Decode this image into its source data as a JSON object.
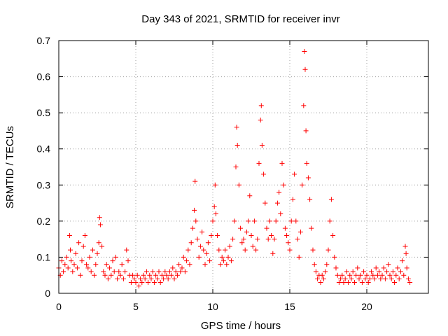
{
  "chart_data": {
    "type": "scatter",
    "title": "Day 343 of 2021, SRMTID for receiver invr",
    "xlabel": "GPS time / hours",
    "ylabel": "SRMTID / TECUs",
    "xlim": [
      0,
      24
    ],
    "ylim": [
      0,
      0.7
    ],
    "x_ticks": [
      0,
      5,
      10,
      15,
      20
    ],
    "x_tick_labels": [
      "0",
      "5",
      "10",
      "15",
      "20"
    ],
    "y_ticks": [
      0,
      0.1,
      0.2,
      0.3,
      0.4,
      0.5,
      0.6,
      0.7
    ],
    "y_tick_labels": [
      "0",
      "0.1",
      "0.2",
      "0.3",
      "0.4",
      "0.5",
      "0.6",
      "0.7"
    ],
    "grid": true,
    "marker": "plus",
    "color": "#ff0000",
    "series": [
      {
        "name": "SRMTID",
        "points": [
          [
            0.0,
            0.07
          ],
          [
            0.1,
            0.05
          ],
          [
            0.2,
            0.09
          ],
          [
            0.3,
            0.06
          ],
          [
            0.4,
            0.08
          ],
          [
            0.5,
            0.1
          ],
          [
            0.6,
            0.07
          ],
          [
            0.7,
            0.16
          ],
          [
            0.75,
            0.12
          ],
          [
            0.8,
            0.09
          ],
          [
            0.9,
            0.06
          ],
          [
            1.0,
            0.08
          ],
          [
            1.1,
            0.11
          ],
          [
            1.2,
            0.07
          ],
          [
            1.3,
            0.14
          ],
          [
            1.4,
            0.05
          ],
          [
            1.5,
            0.09
          ],
          [
            1.6,
            0.13
          ],
          [
            1.7,
            0.16
          ],
          [
            1.8,
            0.08
          ],
          [
            1.9,
            0.07
          ],
          [
            2.0,
            0.1
          ],
          [
            2.1,
            0.06
          ],
          [
            2.2,
            0.12
          ],
          [
            2.3,
            0.05
          ],
          [
            2.4,
            0.08
          ],
          [
            2.5,
            0.11
          ],
          [
            2.6,
            0.14
          ],
          [
            2.65,
            0.21
          ],
          [
            2.7,
            0.19
          ],
          [
            2.8,
            0.13
          ],
          [
            2.9,
            0.06
          ],
          [
            3.0,
            0.05
          ],
          [
            3.1,
            0.08
          ],
          [
            3.2,
            0.04
          ],
          [
            3.3,
            0.07
          ],
          [
            3.4,
            0.05
          ],
          [
            3.5,
            0.09
          ],
          [
            3.6,
            0.06
          ],
          [
            3.7,
            0.1
          ],
          [
            3.8,
            0.04
          ],
          [
            3.9,
            0.06
          ],
          [
            4.0,
            0.05
          ],
          [
            4.1,
            0.08
          ],
          [
            4.2,
            0.04
          ],
          [
            4.3,
            0.06
          ],
          [
            4.4,
            0.12
          ],
          [
            4.5,
            0.09
          ],
          [
            4.6,
            0.05
          ],
          [
            4.7,
            0.03
          ],
          [
            4.8,
            0.05
          ],
          [
            4.9,
            0.04
          ],
          [
            5.0,
            0.03
          ],
          [
            5.1,
            0.05
          ],
          [
            5.2,
            0.02
          ],
          [
            5.3,
            0.04
          ],
          [
            5.4,
            0.03
          ],
          [
            5.5,
            0.05
          ],
          [
            5.6,
            0.04
          ],
          [
            5.7,
            0.06
          ],
          [
            5.8,
            0.03
          ],
          [
            5.9,
            0.05
          ],
          [
            6.0,
            0.04
          ],
          [
            6.1,
            0.06
          ],
          [
            6.2,
            0.03
          ],
          [
            6.3,
            0.05
          ],
          [
            6.4,
            0.04
          ],
          [
            6.5,
            0.06
          ],
          [
            6.6,
            0.03
          ],
          [
            6.7,
            0.05
          ],
          [
            6.8,
            0.04
          ],
          [
            6.9,
            0.06
          ],
          [
            7.0,
            0.05
          ],
          [
            7.1,
            0.04
          ],
          [
            7.2,
            0.06
          ],
          [
            7.3,
            0.05
          ],
          [
            7.4,
            0.07
          ],
          [
            7.5,
            0.04
          ],
          [
            7.6,
            0.06
          ],
          [
            7.7,
            0.05
          ],
          [
            7.8,
            0.08
          ],
          [
            7.9,
            0.06
          ],
          [
            8.0,
            0.07
          ],
          [
            8.1,
            0.1
          ],
          [
            8.2,
            0.06
          ],
          [
            8.3,
            0.09
          ],
          [
            8.4,
            0.12
          ],
          [
            8.5,
            0.08
          ],
          [
            8.6,
            0.14
          ],
          [
            8.7,
            0.18
          ],
          [
            8.8,
            0.23
          ],
          [
            8.85,
            0.31
          ],
          [
            8.9,
            0.2
          ],
          [
            9.0,
            0.15
          ],
          [
            9.1,
            0.1
          ],
          [
            9.2,
            0.13
          ],
          [
            9.3,
            0.17
          ],
          [
            9.4,
            0.12
          ],
          [
            9.5,
            0.08
          ],
          [
            9.6,
            0.11
          ],
          [
            9.7,
            0.14
          ],
          [
            9.8,
            0.09
          ],
          [
            9.9,
            0.16
          ],
          [
            10.0,
            0.2
          ],
          [
            10.1,
            0.24
          ],
          [
            10.15,
            0.3
          ],
          [
            10.2,
            0.22
          ],
          [
            10.3,
            0.16
          ],
          [
            10.4,
            0.12
          ],
          [
            10.5,
            0.08
          ],
          [
            10.6,
            0.1
          ],
          [
            10.7,
            0.09
          ],
          [
            10.8,
            0.12
          ],
          [
            10.9,
            0.08
          ],
          [
            11.0,
            0.1
          ],
          [
            11.1,
            0.13
          ],
          [
            11.2,
            0.09
          ],
          [
            11.3,
            0.15
          ],
          [
            11.4,
            0.2
          ],
          [
            11.5,
            0.35
          ],
          [
            11.55,
            0.46
          ],
          [
            11.6,
            0.41
          ],
          [
            11.7,
            0.3
          ],
          [
            11.8,
            0.18
          ],
          [
            11.9,
            0.14
          ],
          [
            12.0,
            0.15
          ],
          [
            12.1,
            0.12
          ],
          [
            12.2,
            0.17
          ],
          [
            12.3,
            0.2
          ],
          [
            12.4,
            0.27
          ],
          [
            12.5,
            0.16
          ],
          [
            12.6,
            0.13
          ],
          [
            12.7,
            0.2
          ],
          [
            12.8,
            0.12
          ],
          [
            12.9,
            0.15
          ],
          [
            13.0,
            0.36
          ],
          [
            13.1,
            0.48
          ],
          [
            13.15,
            0.52
          ],
          [
            13.2,
            0.41
          ],
          [
            13.3,
            0.33
          ],
          [
            13.4,
            0.25
          ],
          [
            13.5,
            0.18
          ],
          [
            13.6,
            0.15
          ],
          [
            13.7,
            0.2
          ],
          [
            13.8,
            0.16
          ],
          [
            13.9,
            0.11
          ],
          [
            14.0,
            0.15
          ],
          [
            14.1,
            0.2
          ],
          [
            14.2,
            0.25
          ],
          [
            14.3,
            0.28
          ],
          [
            14.4,
            0.22
          ],
          [
            14.5,
            0.36
          ],
          [
            14.6,
            0.3
          ],
          [
            14.7,
            0.18
          ],
          [
            14.8,
            0.16
          ],
          [
            14.9,
            0.14
          ],
          [
            15.0,
            0.12
          ],
          [
            15.1,
            0.2
          ],
          [
            15.2,
            0.26
          ],
          [
            15.3,
            0.33
          ],
          [
            15.4,
            0.2
          ],
          [
            15.5,
            0.15
          ],
          [
            15.6,
            0.1
          ],
          [
            15.7,
            0.17
          ],
          [
            15.8,
            0.3
          ],
          [
            15.9,
            0.52
          ],
          [
            15.95,
            0.67
          ],
          [
            16.0,
            0.62
          ],
          [
            16.05,
            0.45
          ],
          [
            16.1,
            0.36
          ],
          [
            16.2,
            0.32
          ],
          [
            16.3,
            0.26
          ],
          [
            16.4,
            0.18
          ],
          [
            16.5,
            0.12
          ],
          [
            16.6,
            0.08
          ],
          [
            16.7,
            0.06
          ],
          [
            16.8,
            0.04
          ],
          [
            16.9,
            0.05
          ],
          [
            17.0,
            0.03
          ],
          [
            17.1,
            0.05
          ],
          [
            17.2,
            0.04
          ],
          [
            17.3,
            0.06
          ],
          [
            17.4,
            0.08
          ],
          [
            17.5,
            0.12
          ],
          [
            17.6,
            0.2
          ],
          [
            17.7,
            0.26
          ],
          [
            17.8,
            0.16
          ],
          [
            17.9,
            0.1
          ],
          [
            18.0,
            0.07
          ],
          [
            18.1,
            0.05
          ],
          [
            18.2,
            0.03
          ],
          [
            18.3,
            0.04
          ],
          [
            18.4,
            0.05
          ],
          [
            18.5,
            0.03
          ],
          [
            18.6,
            0.04
          ],
          [
            18.7,
            0.06
          ],
          [
            18.8,
            0.03
          ],
          [
            18.9,
            0.05
          ],
          [
            19.0,
            0.04
          ],
          [
            19.1,
            0.06
          ],
          [
            19.2,
            0.03
          ],
          [
            19.3,
            0.05
          ],
          [
            19.4,
            0.07
          ],
          [
            19.5,
            0.04
          ],
          [
            19.6,
            0.05
          ],
          [
            19.7,
            0.03
          ],
          [
            19.8,
            0.06
          ],
          [
            19.9,
            0.04
          ],
          [
            20.0,
            0.05
          ],
          [
            20.1,
            0.03
          ],
          [
            20.2,
            0.04
          ],
          [
            20.3,
            0.06
          ],
          [
            20.4,
            0.05
          ],
          [
            20.5,
            0.04
          ],
          [
            20.6,
            0.07
          ],
          [
            20.7,
            0.05
          ],
          [
            20.8,
            0.06
          ],
          [
            20.9,
            0.04
          ],
          [
            21.0,
            0.05
          ],
          [
            21.1,
            0.07
          ],
          [
            21.2,
            0.04
          ],
          [
            21.3,
            0.06
          ],
          [
            21.4,
            0.08
          ],
          [
            21.5,
            0.05
          ],
          [
            21.6,
            0.04
          ],
          [
            21.7,
            0.06
          ],
          [
            21.8,
            0.03
          ],
          [
            21.9,
            0.05
          ],
          [
            22.0,
            0.07
          ],
          [
            22.1,
            0.04
          ],
          [
            22.2,
            0.06
          ],
          [
            22.3,
            0.09
          ],
          [
            22.4,
            0.05
          ],
          [
            22.5,
            0.13
          ],
          [
            22.55,
            0.11
          ],
          [
            22.6,
            0.07
          ],
          [
            22.7,
            0.04
          ],
          [
            22.8,
            0.03
          ]
        ]
      }
    ]
  }
}
